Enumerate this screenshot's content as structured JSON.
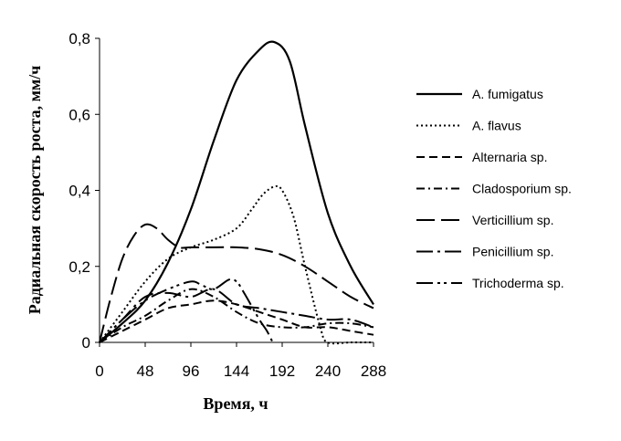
{
  "chart_data": {
    "type": "line",
    "xlabel": "Время, ч",
    "ylabel": "Радиальная скорость роста, мм/ч",
    "xlim": [
      0,
      288
    ],
    "ylim": [
      0,
      0.8
    ],
    "xticks": [
      "0",
      "48",
      "96",
      "144",
      "192",
      "240",
      "288"
    ],
    "yticks": [
      "0",
      "0,2",
      "0,4",
      "0,6",
      "0,8"
    ],
    "grid": false,
    "legend_position": "right",
    "series": [
      {
        "name": "A. fumigatus",
        "dash": "solid",
        "x": [
          0,
          24,
          48,
          72,
          96,
          120,
          144,
          168,
          184,
          200,
          216,
          240,
          264,
          288
        ],
        "y": [
          0,
          0.05,
          0.11,
          0.21,
          0.35,
          0.53,
          0.69,
          0.77,
          0.79,
          0.74,
          0.57,
          0.34,
          0.2,
          0.1
        ]
      },
      {
        "name": "A. flavus",
        "dash": "dotted",
        "x": [
          0,
          24,
          48,
          72,
          96,
          120,
          144,
          160,
          172,
          184,
          192,
          204,
          216,
          232,
          240,
          264,
          288
        ],
        "y": [
          0,
          0.08,
          0.16,
          0.22,
          0.25,
          0.27,
          0.3,
          0.35,
          0.39,
          0.41,
          0.4,
          0.33,
          0.2,
          0.04,
          0,
          0,
          0
        ]
      },
      {
        "name": "Alternaria sp.",
        "dash": "dashed",
        "x": [
          0,
          24,
          48,
          72,
          96,
          120,
          144,
          168,
          192,
          216,
          240,
          264,
          288
        ],
        "y": [
          0,
          0.03,
          0.06,
          0.09,
          0.1,
          0.11,
          0.1,
          0.08,
          0.06,
          0.04,
          0.04,
          0.03,
          0.02
        ]
      },
      {
        "name": "Cladosporium sp.",
        "dash": "dashdot",
        "x": [
          0,
          24,
          48,
          72,
          96,
          120,
          144,
          168,
          192,
          216,
          240,
          264,
          288
        ],
        "y": [
          0,
          0.04,
          0.07,
          0.11,
          0.14,
          0.12,
          0.08,
          0.05,
          0.04,
          0.04,
          0.05,
          0.05,
          0.04
        ]
      },
      {
        "name": "Verticillium sp.",
        "dash": "longdash",
        "x": [
          0,
          12,
          24,
          36,
          48,
          60,
          72,
          84,
          96,
          120,
          144,
          168,
          192,
          216,
          240,
          264,
          288
        ],
        "y": [
          0,
          0.12,
          0.22,
          0.28,
          0.31,
          0.3,
          0.27,
          0.25,
          0.25,
          0.25,
          0.25,
          0.245,
          0.23,
          0.2,
          0.16,
          0.12,
          0.09
        ]
      },
      {
        "name": "Penicillium sp.",
        "dash": "longdashdot",
        "x": [
          0,
          24,
          48,
          72,
          96,
          120,
          144,
          168,
          192,
          216,
          240,
          264,
          288
        ],
        "y": [
          0,
          0.06,
          0.12,
          0.13,
          0.12,
          0.14,
          0.1,
          0.09,
          0.08,
          0.07,
          0.06,
          0.06,
          0.04
        ]
      },
      {
        "name": "Trichoderma sp.",
        "dash": "longdashdotdot",
        "x": [
          0,
          24,
          48,
          72,
          96,
          108,
          120,
          136,
          144,
          152,
          168,
          176,
          182
        ],
        "y": [
          0,
          0.06,
          0.11,
          0.14,
          0.16,
          0.15,
          0.14,
          0.165,
          0.16,
          0.13,
          0.06,
          0.03,
          0
        ]
      }
    ]
  }
}
